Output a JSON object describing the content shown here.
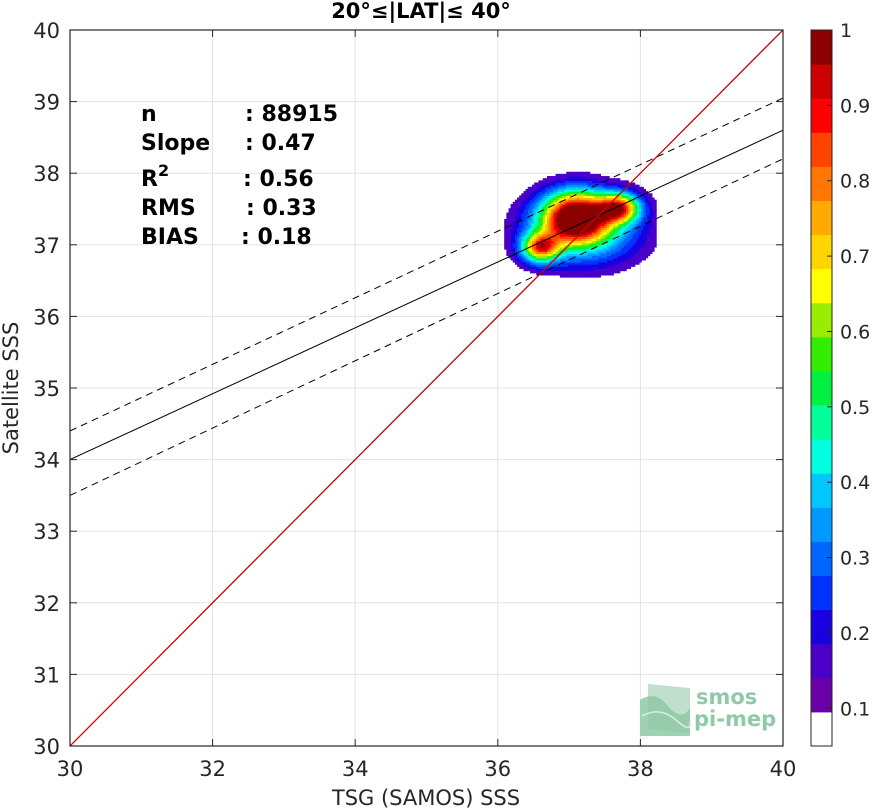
{
  "chart_data": {
    "type": "heatmap",
    "title": "20°≤|LAT|≤ 40°",
    "xlabel": "TSG (SAMOS) SSS",
    "ylabel": "Satellite SSS",
    "xlim": [
      30,
      40
    ],
    "ylim": [
      30,
      40
    ],
    "xticks": [
      30,
      32,
      34,
      36,
      38,
      40
    ],
    "yticks": [
      30,
      31,
      32,
      33,
      34,
      35,
      36,
      37,
      38,
      39,
      40
    ],
    "grid": true,
    "stats": [
      {
        "label": "n",
        "value": ": 88915"
      },
      {
        "label": "Slope",
        "value": ": 0.47"
      },
      {
        "label": "R",
        "sup": "2",
        "value": ": 0.56"
      },
      {
        "label": "RMS",
        "value": ": 0.33"
      },
      {
        "label": "BIAS",
        "value": ": 0.18"
      }
    ],
    "lines": {
      "one_to_one": {
        "x": [
          30,
          40
        ],
        "y": [
          30,
          40
        ],
        "color": "#cc0000"
      },
      "regression": {
        "x": [
          30,
          40
        ],
        "y": [
          34.0,
          38.6
        ],
        "color": "#000000",
        "style": "solid"
      },
      "upper_bound": {
        "x": [
          30,
          40
        ],
        "y": [
          34.4,
          39.05
        ],
        "color": "#000000",
        "style": "dashed"
      },
      "lower_bound": {
        "x": [
          30,
          40
        ],
        "y": [
          33.5,
          38.2
        ],
        "color": "#000000",
        "style": "dashed"
      }
    },
    "density_peaks": [
      {
        "x": 37.1,
        "y": 37.4,
        "amp": 1.0,
        "sx": 0.32,
        "sy": 0.24
      },
      {
        "x": 36.6,
        "y": 36.97,
        "amp": 0.72,
        "sx": 0.18,
        "sy": 0.14
      },
      {
        "x": 37.7,
        "y": 37.52,
        "amp": 0.74,
        "sx": 0.2,
        "sy": 0.14
      },
      {
        "x": 37.2,
        "y": 37.2,
        "amp": 0.38,
        "sx": 0.55,
        "sy": 0.33
      }
    ],
    "colorbar": {
      "ticks": [
        "0.1",
        "0.2",
        "0.3",
        "0.4",
        "0.5",
        "0.6",
        "0.7",
        "0.8",
        "0.9",
        "1"
      ],
      "colors": [
        "#ffffff",
        "#6a00a8",
        "#4b00c8",
        "#1a00e0",
        "#0033ff",
        "#0066ff",
        "#0099ff",
        "#00c8ff",
        "#00ffe0",
        "#00ff99",
        "#00f040",
        "#33ee00",
        "#99ee00",
        "#ffff00",
        "#ffd500",
        "#ffaa00",
        "#ff7700",
        "#ff4400",
        "#ff0000",
        "#cc0000",
        "#8b0000"
      ]
    },
    "logo": {
      "line1": "smos",
      "line2": "pi-mep"
    }
  }
}
